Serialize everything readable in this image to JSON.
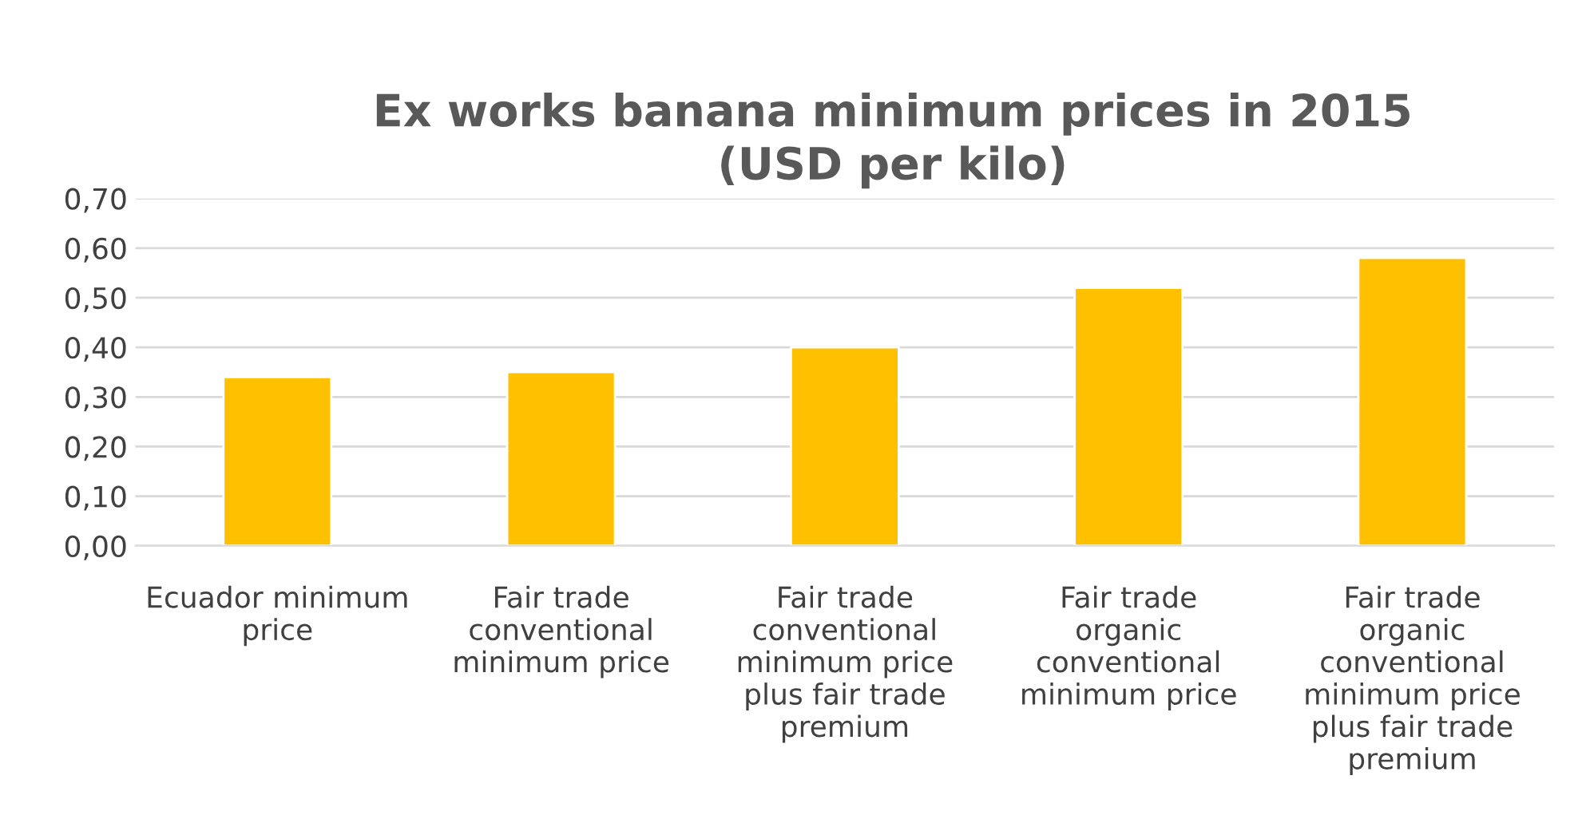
{
  "chart_data": {
    "type": "bar",
    "title": "Ex works banana minimum prices in 2015 (USD per kilo)",
    "categories": [
      "Ecuador minimum price",
      "Fair trade conventional minimum price",
      "Fair trade conventional minimum price plus fair trade premium",
      "Fair trade organic conventional minimum price",
      "Fair trade organic conventional minimum price plus fair trade premium"
    ],
    "values": [
      0.34,
      0.35,
      0.4,
      0.52,
      0.58
    ],
    "color": "#ffc000",
    "ylim": [
      0,
      0.7
    ],
    "yticks": [
      {
        "value": 0,
        "label": "0,00"
      },
      {
        "value": 0.1,
        "label": "0,10"
      },
      {
        "value": 0.2,
        "label": "0,20"
      },
      {
        "value": 0.3,
        "label": "0,30"
      },
      {
        "value": 0.4,
        "label": "0,40"
      },
      {
        "value": 0.5,
        "label": "0,50"
      },
      {
        "value": 0.6,
        "label": "0,60"
      },
      {
        "value": 0.7,
        "label": "0,70"
      }
    ],
    "grid": "y"
  }
}
